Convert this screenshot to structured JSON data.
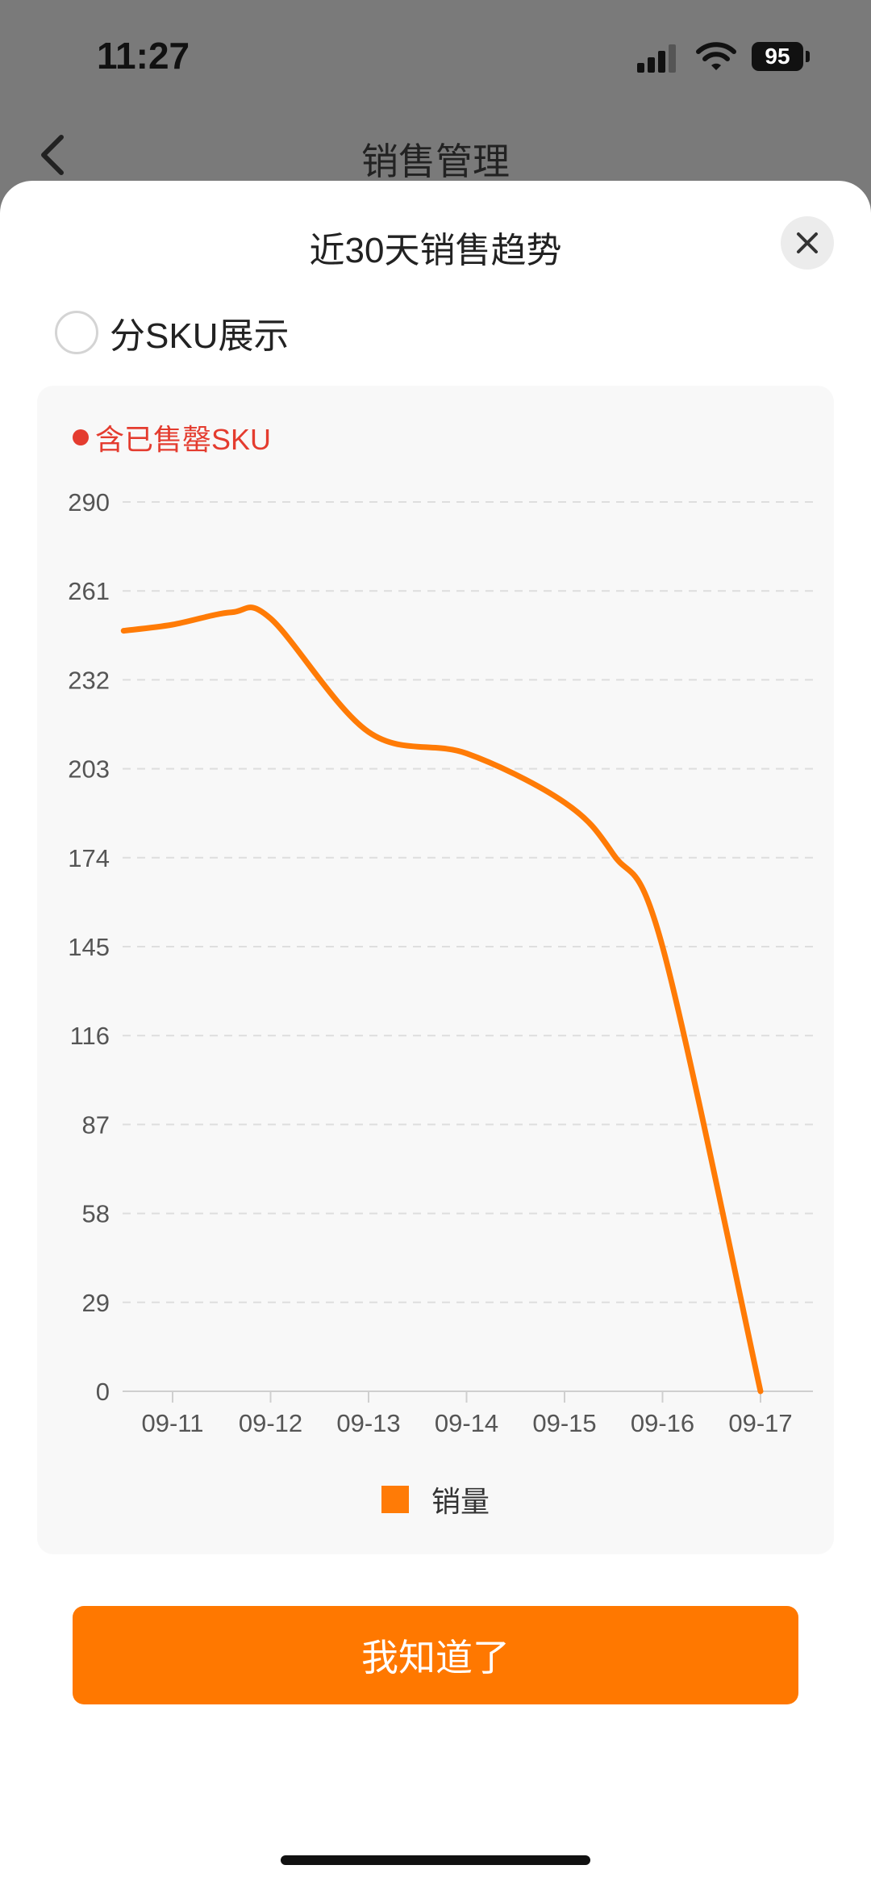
{
  "status_bar": {
    "time": "11:27",
    "battery": "95"
  },
  "nav": {
    "title": "销售管理",
    "back_icon": "chevron-left-icon"
  },
  "sheet": {
    "title": "近30天销售趋势",
    "close_icon": "close-icon",
    "toggle_label": "分SKU展示",
    "toggle_checked": false,
    "button_label": "我知道了"
  },
  "chart_note": "含已售罄SKU",
  "colors": {
    "accent": "#ff7800",
    "line": "#ff7b06",
    "note": "#e43c2f"
  },
  "chart_data": {
    "type": "line",
    "x": [
      "09-11",
      "09-12",
      "09-13",
      "09-14",
      "09-15",
      "09-16",
      "09-17"
    ],
    "y_ticks": [
      0,
      29,
      58,
      87,
      116,
      145,
      174,
      203,
      232,
      261,
      290
    ],
    "ylim": [
      0,
      290
    ],
    "series": [
      {
        "name": "销量",
        "color": "#ff7b06",
        "points": [
          [
            "09-10.5",
            248
          ],
          [
            "09-11",
            250
          ],
          [
            "09-11.6",
            254
          ],
          [
            "09-12",
            252
          ],
          [
            "09-13",
            215
          ],
          [
            "09-14",
            208
          ],
          [
            "09-15",
            192
          ],
          [
            "09-15.5",
            175
          ],
          [
            "09-16",
            145
          ],
          [
            "09-17",
            0
          ]
        ]
      }
    ],
    "grid": true,
    "legend_position": "bottom-center"
  }
}
